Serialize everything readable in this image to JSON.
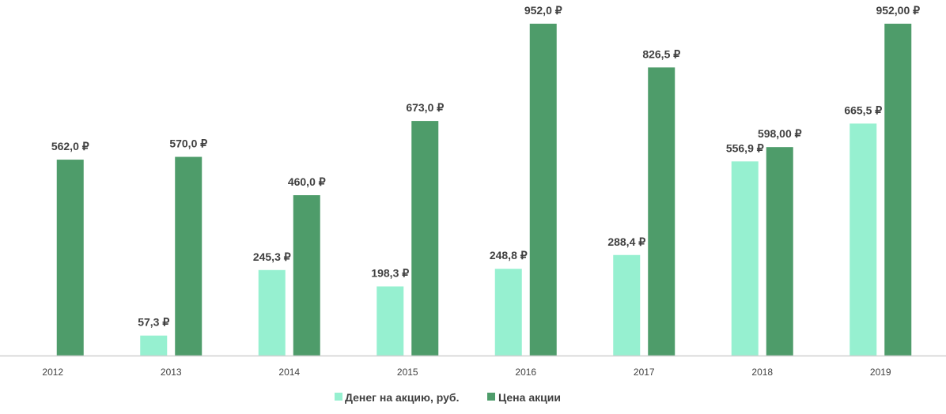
{
  "chart_data": {
    "type": "bar",
    "categories": [
      "2012",
      "2013",
      "2014",
      "2015",
      "2016",
      "2017",
      "2018",
      "2019"
    ],
    "series": [
      {
        "name": "Денег на акцию, руб.",
        "color": "#96F0D0",
        "values": [
          null,
          57.3,
          245.3,
          198.3,
          248.8,
          288.4,
          556.9,
          665.5
        ],
        "labels": [
          "",
          "57,3 ₽",
          "245,3 ₽",
          "198,3 ₽",
          "248,8 ₽",
          "288,4 ₽",
          "556,9 ₽",
          "665,5 ₽"
        ]
      },
      {
        "name": "Цена акции",
        "color": "#4E9C6A",
        "values": [
          562.0,
          570.0,
          460.0,
          673.0,
          952.0,
          826.5,
          598.0,
          952.0
        ],
        "labels": [
          "562,0 ₽",
          "570,0 ₽",
          "460,0 ₽",
          "673,0 ₽",
          "952,0 ₽",
          "826,5 ₽",
          "598,00 ₽",
          "952,00 ₽"
        ]
      }
    ],
    "ylim": [
      0,
      952
    ],
    "grid": false,
    "legend_position": "bottom-center",
    "axis_color": "#d0d0d0",
    "label_color": "#404040"
  }
}
